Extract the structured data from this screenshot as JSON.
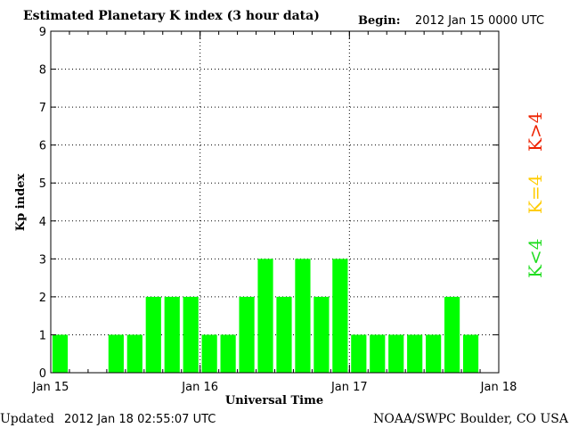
{
  "chart_data": {
    "type": "bar",
    "title": "Estimated Planetary K index (3 hour data)",
    "begin_label": "Begin:",
    "begin_value": "2012 Jan 15 0000 UTC",
    "ylabel": "Kp index",
    "xlabel": "Universal Time",
    "ylim": [
      0,
      9
    ],
    "yticks": [
      0,
      1,
      2,
      3,
      4,
      5,
      6,
      7,
      8,
      9
    ],
    "xlim_hours": [
      0,
      72
    ],
    "x_unit": "hours from 2012 Jan 15 0000 UTC",
    "xtick_labels": [
      "Jan 15",
      "Jan 16",
      "Jan 17",
      "Jan 18"
    ],
    "xtick_hours": [
      0,
      24,
      48,
      72
    ],
    "bar_interval_hours": 3,
    "values": [
      1,
      null,
      null,
      1,
      1,
      2,
      2,
      2,
      1,
      1,
      2,
      3,
      2,
      3,
      2,
      3,
      1,
      1,
      1,
      1,
      1,
      2,
      1
    ],
    "bar_color": "#00ff00",
    "grid": "dotted, major ticks only",
    "legend": [
      {
        "label": "K<4",
        "color": "#22dd22"
      },
      {
        "label": "K=4",
        "color": "#ffcc00"
      },
      {
        "label": "K>4",
        "color": "#ee2200"
      }
    ]
  },
  "footer": {
    "updated_label": "Updated",
    "updated_value": "2012 Jan 18 02:55:07 UTC",
    "source": "NOAA/SWPC Boulder, CO USA"
  }
}
